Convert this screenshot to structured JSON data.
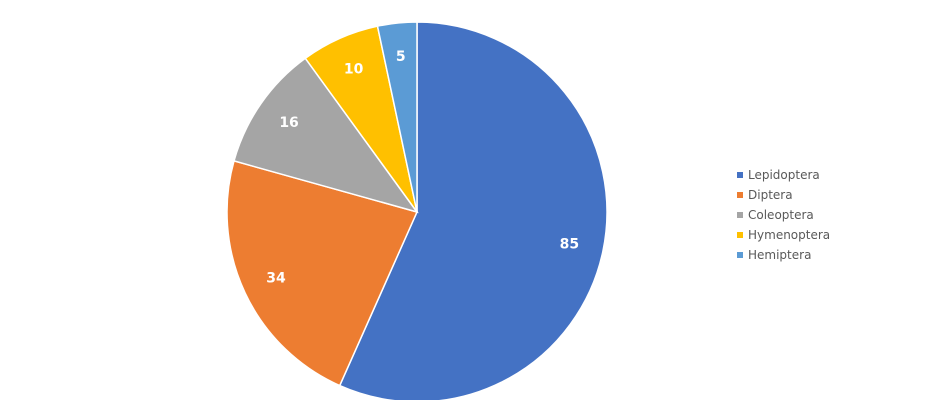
{
  "chart_data": {
    "type": "pie",
    "categories": [
      "Lepidoptera",
      "Diptera",
      "Coleoptera",
      "Hymenoptera",
      "Hemiptera"
    ],
    "values": [
      85,
      34,
      16,
      10,
      5
    ],
    "colors": [
      "#4472C4",
      "#ED7D31",
      "#A5A5A5",
      "#FFC000",
      "#5B9BD5"
    ],
    "data_labels": [
      "85",
      "34",
      "16",
      "10",
      "5"
    ],
    "legend_position": "right",
    "start_angle": "12 o'clock",
    "direction": "clockwise"
  }
}
